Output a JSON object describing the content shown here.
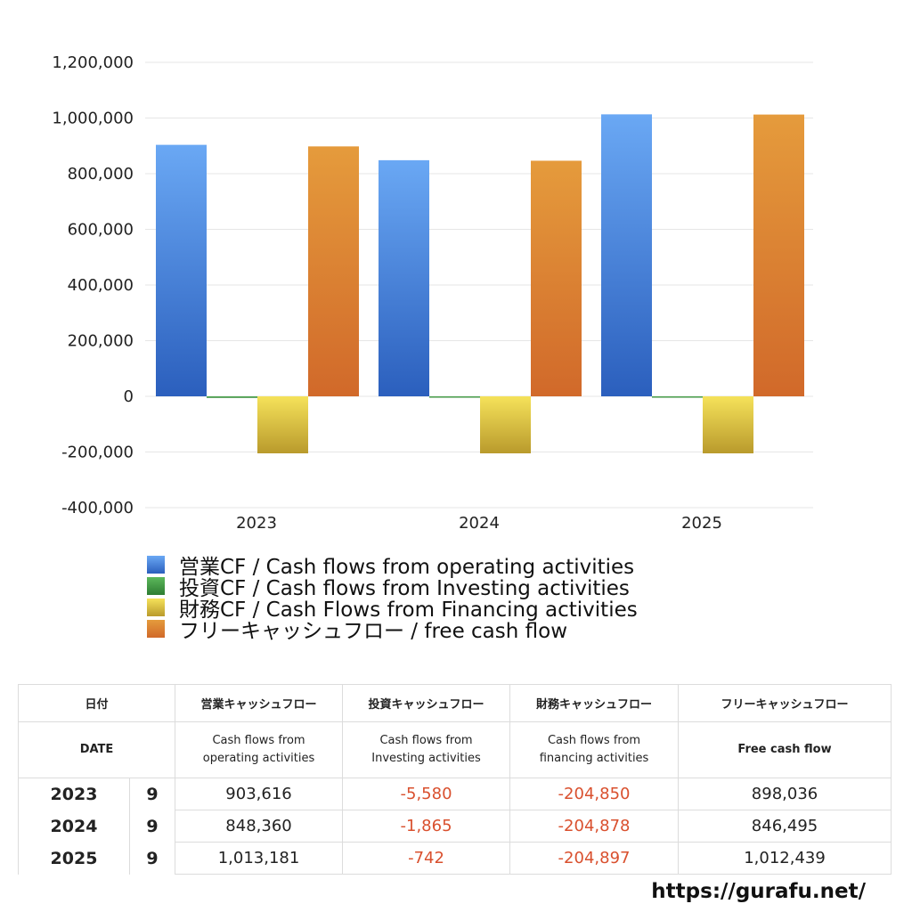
{
  "chart_data": {
    "type": "bar",
    "categories": [
      "2023",
      "2024",
      "2025"
    ],
    "series": [
      {
        "name": "営業CF / Cash flows from operating activities",
        "values": [
          903616,
          848360,
          1013181
        ],
        "color_top": "#6aa8f4",
        "color_bottom": "#2b5fbd"
      },
      {
        "name": "投資CF / Cash flows from Investing activities",
        "values": [
          -5580,
          -1865,
          -742
        ],
        "color_top": "#5cb85c",
        "color_bottom": "#2e7d32"
      },
      {
        "name": "財務CF / Cash Flows from Financing activities",
        "values": [
          -204850,
          -204878,
          -204897
        ],
        "color_top": "#f5e25a",
        "color_bottom": "#b99a2c"
      },
      {
        "name": "フリーキャッシュフロー / free cash flow",
        "values": [
          898036,
          846495,
          1012439
        ],
        "color_top": "#e59b3c",
        "color_bottom": "#d1692a"
      }
    ],
    "yticks": [
      "1,200,000",
      "1,000,000",
      "800,000",
      "600,000",
      "400,000",
      "200,000",
      "0",
      "-200,000",
      "-400,000"
    ],
    "ylim": [
      -400000,
      1200000
    ],
    "grid": true,
    "legend_position": "bottom-left"
  },
  "legend": [
    {
      "label": "営業CF / Cash flows from operating activities",
      "color": "#3d7ee0"
    },
    {
      "label": "投資CF / Cash flows from Investing activities",
      "color": "#43a047"
    },
    {
      "label": "財務CF / Cash Flows from Financing activities",
      "color": "#e8cf45"
    },
    {
      "label": "フリーキャッシュフロー / free cash flow",
      "color": "#e07f30"
    }
  ],
  "table": {
    "header_jp": {
      "date": "日付",
      "operating": "営業キャッシュフロー",
      "investing": "投資キャッシュフロー",
      "financing": "財務キャッシュフロー",
      "free": "フリーキャッシュフロー"
    },
    "header_en": {
      "date": "DATE",
      "operating_l1": "Cash flows from",
      "operating_l2": "operating activities",
      "investing_l1": "Cash flows from",
      "investing_l2": "Investing activities",
      "financing_l1": "Cash flows from",
      "financing_l2": "financing activities",
      "free": "Free cash flow"
    },
    "rows": [
      {
        "year": "2023",
        "month": "9",
        "operating": "903,616",
        "investing": "-5,580",
        "financing": "-204,850",
        "free": "898,036"
      },
      {
        "year": "2024",
        "month": "9",
        "operating": "848,360",
        "investing": "-1,865",
        "financing": "-204,878",
        "free": "846,495"
      },
      {
        "year": "2025",
        "month": "9",
        "operating": "1,013,181",
        "investing": "-742",
        "financing": "-204,897",
        "free": "1,012,439"
      }
    ]
  },
  "footer": {
    "url": "https://gurafu.net/"
  }
}
